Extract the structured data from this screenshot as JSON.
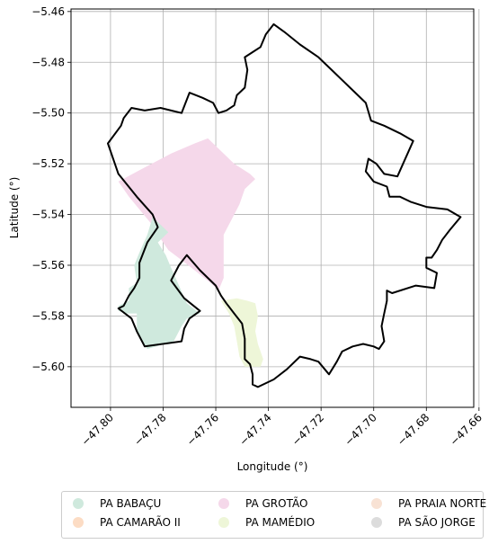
{
  "chart_data": {
    "type": "map",
    "xlabel": "Longitude (°)",
    "ylabel": "Latitude (°)",
    "xlim": [
      -47.815,
      -47.662
    ],
    "ylim": [
      -5.616,
      -5.459
    ],
    "x_ticks": [
      -47.8,
      -47.78,
      -47.76,
      -47.74,
      -47.72,
      -47.7,
      -47.68,
      -47.66
    ],
    "x_tick_labels": [
      "−47.80",
      "−47.78",
      "−47.76",
      "−47.74",
      "−47.72",
      "−47.70",
      "−47.68",
      "−47.66"
    ],
    "y_ticks": [
      -5.46,
      -5.48,
      -5.5,
      -5.52,
      -5.54,
      -5.56,
      -5.58,
      -5.6
    ],
    "y_tick_labels": [
      "−5.46",
      "−5.48",
      "−5.50",
      "−5.52",
      "−5.54",
      "−5.56",
      "−5.58",
      "−5.60"
    ],
    "grid": true,
    "legend_position": "bottom",
    "legend": [
      {
        "name": "PA BABAÇU",
        "color": "#cfe9dd"
      },
      {
        "name": "PA CAMARÃO II",
        "color": "#fcdcc4"
      },
      {
        "name": "PA GROTÃO",
        "color": "#f5d8ea"
      },
      {
        "name": "PA MAMÉDIO",
        "color": "#eef6d8"
      },
      {
        "name": "PA PRAIA NORTE",
        "color": "#f8e2d4"
      },
      {
        "name": "PA SÃO JORGE",
        "color": "#dcdcdc"
      }
    ],
    "regions": [
      {
        "name": "PA GROTÃO",
        "color": "#f5d8ea",
        "coords": [
          [
            -47.797,
            -5.527
          ],
          [
            -47.788,
            -5.522
          ],
          [
            -47.777,
            -5.516
          ],
          [
            -47.768,
            -5.512
          ],
          [
            -47.763,
            -5.51
          ],
          [
            -47.758,
            -5.515
          ],
          [
            -47.753,
            -5.52
          ],
          [
            -47.747,
            -5.524
          ],
          [
            -47.745,
            -5.526
          ],
          [
            -47.749,
            -5.53
          ],
          [
            -47.751,
            -5.536
          ],
          [
            -47.754,
            -5.542
          ],
          [
            -47.757,
            -5.548
          ],
          [
            -47.757,
            -5.557
          ],
          [
            -47.757,
            -5.565
          ],
          [
            -47.759,
            -5.57
          ],
          [
            -47.762,
            -5.567
          ],
          [
            -47.768,
            -5.562
          ],
          [
            -47.773,
            -5.558
          ],
          [
            -47.778,
            -5.554
          ],
          [
            -47.782,
            -5.548
          ],
          [
            -47.785,
            -5.543
          ],
          [
            -47.789,
            -5.538
          ],
          [
            -47.793,
            -5.533
          ]
        ]
      },
      {
        "name": "PA BABAÇU",
        "color": "#cfe9dd",
        "coords": [
          [
            -47.784,
            -5.541
          ],
          [
            -47.786,
            -5.548
          ],
          [
            -47.789,
            -5.555
          ],
          [
            -47.791,
            -5.56
          ],
          [
            -47.79,
            -5.567
          ],
          [
            -47.793,
            -5.569
          ],
          [
            -47.793,
            -5.574
          ],
          [
            -47.797,
            -5.576
          ],
          [
            -47.797,
            -5.578
          ],
          [
            -47.794,
            -5.579
          ],
          [
            -47.79,
            -5.579
          ],
          [
            -47.79,
            -5.586
          ],
          [
            -47.786,
            -5.593
          ],
          [
            -47.776,
            -5.59
          ],
          [
            -47.773,
            -5.584
          ],
          [
            -47.771,
            -5.581
          ],
          [
            -47.766,
            -5.579
          ],
          [
            -47.771,
            -5.575
          ],
          [
            -47.774,
            -5.568
          ],
          [
            -47.777,
            -5.561
          ],
          [
            -47.779,
            -5.556
          ],
          [
            -47.782,
            -5.551
          ],
          [
            -47.778,
            -5.547
          ]
        ]
      },
      {
        "name": "PA MAMÉDIO",
        "color": "#eef6d8",
        "coords": [
          [
            -47.758,
            -5.574
          ],
          [
            -47.752,
            -5.573
          ],
          [
            -47.748,
            -5.574
          ],
          [
            -47.745,
            -5.575
          ],
          [
            -47.744,
            -5.58
          ],
          [
            -47.745,
            -5.586
          ],
          [
            -47.744,
            -5.591
          ],
          [
            -47.742,
            -5.597
          ],
          [
            -47.743,
            -5.6
          ],
          [
            -47.749,
            -5.6
          ],
          [
            -47.751,
            -5.596
          ],
          [
            -47.752,
            -5.59
          ],
          [
            -47.753,
            -5.584
          ],
          [
            -47.755,
            -5.579
          ]
        ]
      }
    ],
    "boundary": [
      [
        -47.801,
        -5.512
      ],
      [
        -47.796,
        -5.505
      ],
      [
        -47.795,
        -5.502
      ],
      [
        -47.792,
        -5.498
      ],
      [
        -47.787,
        -5.499
      ],
      [
        -47.781,
        -5.498
      ],
      [
        -47.777,
        -5.499
      ],
      [
        -47.773,
        -5.5
      ],
      [
        -47.77,
        -5.492
      ],
      [
        -47.765,
        -5.494
      ],
      [
        -47.761,
        -5.496
      ],
      [
        -47.759,
        -5.5
      ],
      [
        -47.756,
        -5.499
      ],
      [
        -47.753,
        -5.497
      ],
      [
        -47.752,
        -5.493
      ],
      [
        -47.749,
        -5.49
      ],
      [
        -47.748,
        -5.483
      ],
      [
        -47.749,
        -5.478
      ],
      [
        -47.746,
        -5.476
      ],
      [
        -47.743,
        -5.474
      ],
      [
        -47.741,
        -5.469
      ],
      [
        -47.738,
        -5.465
      ],
      [
        -47.734,
        -5.468
      ],
      [
        -47.728,
        -5.473
      ],
      [
        -47.721,
        -5.478
      ],
      [
        -47.715,
        -5.484
      ],
      [
        -47.709,
        -5.49
      ],
      [
        -47.703,
        -5.496
      ],
      [
        -47.701,
        -5.503
      ],
      [
        -47.696,
        -5.505
      ],
      [
        -47.69,
        -5.508
      ],
      [
        -47.685,
        -5.511
      ],
      [
        -47.691,
        -5.525
      ],
      [
        -47.696,
        -5.524
      ],
      [
        -47.699,
        -5.52
      ],
      [
        -47.702,
        -5.518
      ],
      [
        -47.703,
        -5.523
      ],
      [
        -47.7,
        -5.527
      ],
      [
        -47.695,
        -5.529
      ],
      [
        -47.694,
        -5.533
      ],
      [
        -47.69,
        -5.533
      ],
      [
        -47.686,
        -5.535
      ],
      [
        -47.68,
        -5.537
      ],
      [
        -47.672,
        -5.538
      ],
      [
        -47.667,
        -5.541
      ],
      [
        -47.671,
        -5.546
      ],
      [
        -47.674,
        -5.55
      ],
      [
        -47.676,
        -5.554
      ],
      [
        -47.678,
        -5.557
      ],
      [
        -47.68,
        -5.557
      ],
      [
        -47.68,
        -5.561
      ],
      [
        -47.676,
        -5.563
      ],
      [
        -47.677,
        -5.569
      ],
      [
        -47.684,
        -5.568
      ],
      [
        -47.693,
        -5.571
      ],
      [
        -47.695,
        -5.57
      ],
      [
        -47.695,
        -5.574
      ],
      [
        -47.696,
        -5.579
      ],
      [
        -47.697,
        -5.584
      ],
      [
        -47.696,
        -5.59
      ],
      [
        -47.698,
        -5.593
      ],
      [
        -47.7,
        -5.592
      ],
      [
        -47.704,
        -5.591
      ],
      [
        -47.708,
        -5.592
      ],
      [
        -47.712,
        -5.594
      ],
      [
        -47.714,
        -5.598
      ],
      [
        -47.717,
        -5.603
      ],
      [
        -47.721,
        -5.598
      ],
      [
        -47.724,
        -5.597
      ],
      [
        -47.728,
        -5.596
      ],
      [
        -47.733,
        -5.601
      ],
      [
        -47.738,
        -5.605
      ],
      [
        -47.744,
        -5.608
      ],
      [
        -47.746,
        -5.607
      ],
      [
        -47.746,
        -5.603
      ],
      [
        -47.747,
        -5.599
      ],
      [
        -47.749,
        -5.597
      ],
      [
        -47.749,
        -5.589
      ],
      [
        -47.75,
        -5.583
      ],
      [
        -47.753,
        -5.579
      ],
      [
        -47.756,
        -5.575
      ],
      [
        -47.758,
        -5.572
      ],
      [
        -47.76,
        -5.568
      ],
      [
        -47.766,
        -5.562
      ],
      [
        -47.771,
        -5.556
      ],
      [
        -47.774,
        -5.56
      ],
      [
        -47.777,
        -5.566
      ],
      [
        -47.772,
        -5.573
      ],
      [
        -47.766,
        -5.578
      ],
      [
        -47.77,
        -5.581
      ],
      [
        -47.772,
        -5.585
      ],
      [
        -47.773,
        -5.59
      ],
      [
        -47.787,
        -5.592
      ],
      [
        -47.79,
        -5.586
      ],
      [
        -47.792,
        -5.581
      ],
      [
        -47.797,
        -5.577
      ],
      [
        -47.795,
        -5.576
      ],
      [
        -47.793,
        -5.572
      ],
      [
        -47.791,
        -5.569
      ],
      [
        -47.789,
        -5.565
      ],
      [
        -47.789,
        -5.559
      ],
      [
        -47.786,
        -5.551
      ],
      [
        -47.782,
        -5.545
      ],
      [
        -47.784,
        -5.54
      ],
      [
        -47.79,
        -5.533
      ],
      [
        -47.797,
        -5.524
      ],
      [
        -47.801,
        -5.512
      ]
    ]
  }
}
